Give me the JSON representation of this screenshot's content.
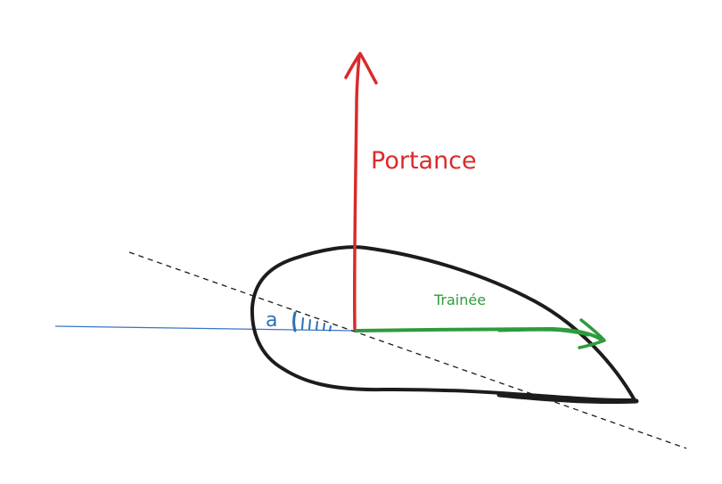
{
  "labels": {
    "lift": "Portance",
    "drag": "Trainée",
    "angle": "a"
  },
  "colors": {
    "lift": "#d92b2b",
    "drag": "#2e9b3c",
    "angle": "#2f6fb8",
    "airfoil": "#1c1c1c",
    "chord": "#1c1c1c",
    "airflow": "#3b74c4"
  }
}
